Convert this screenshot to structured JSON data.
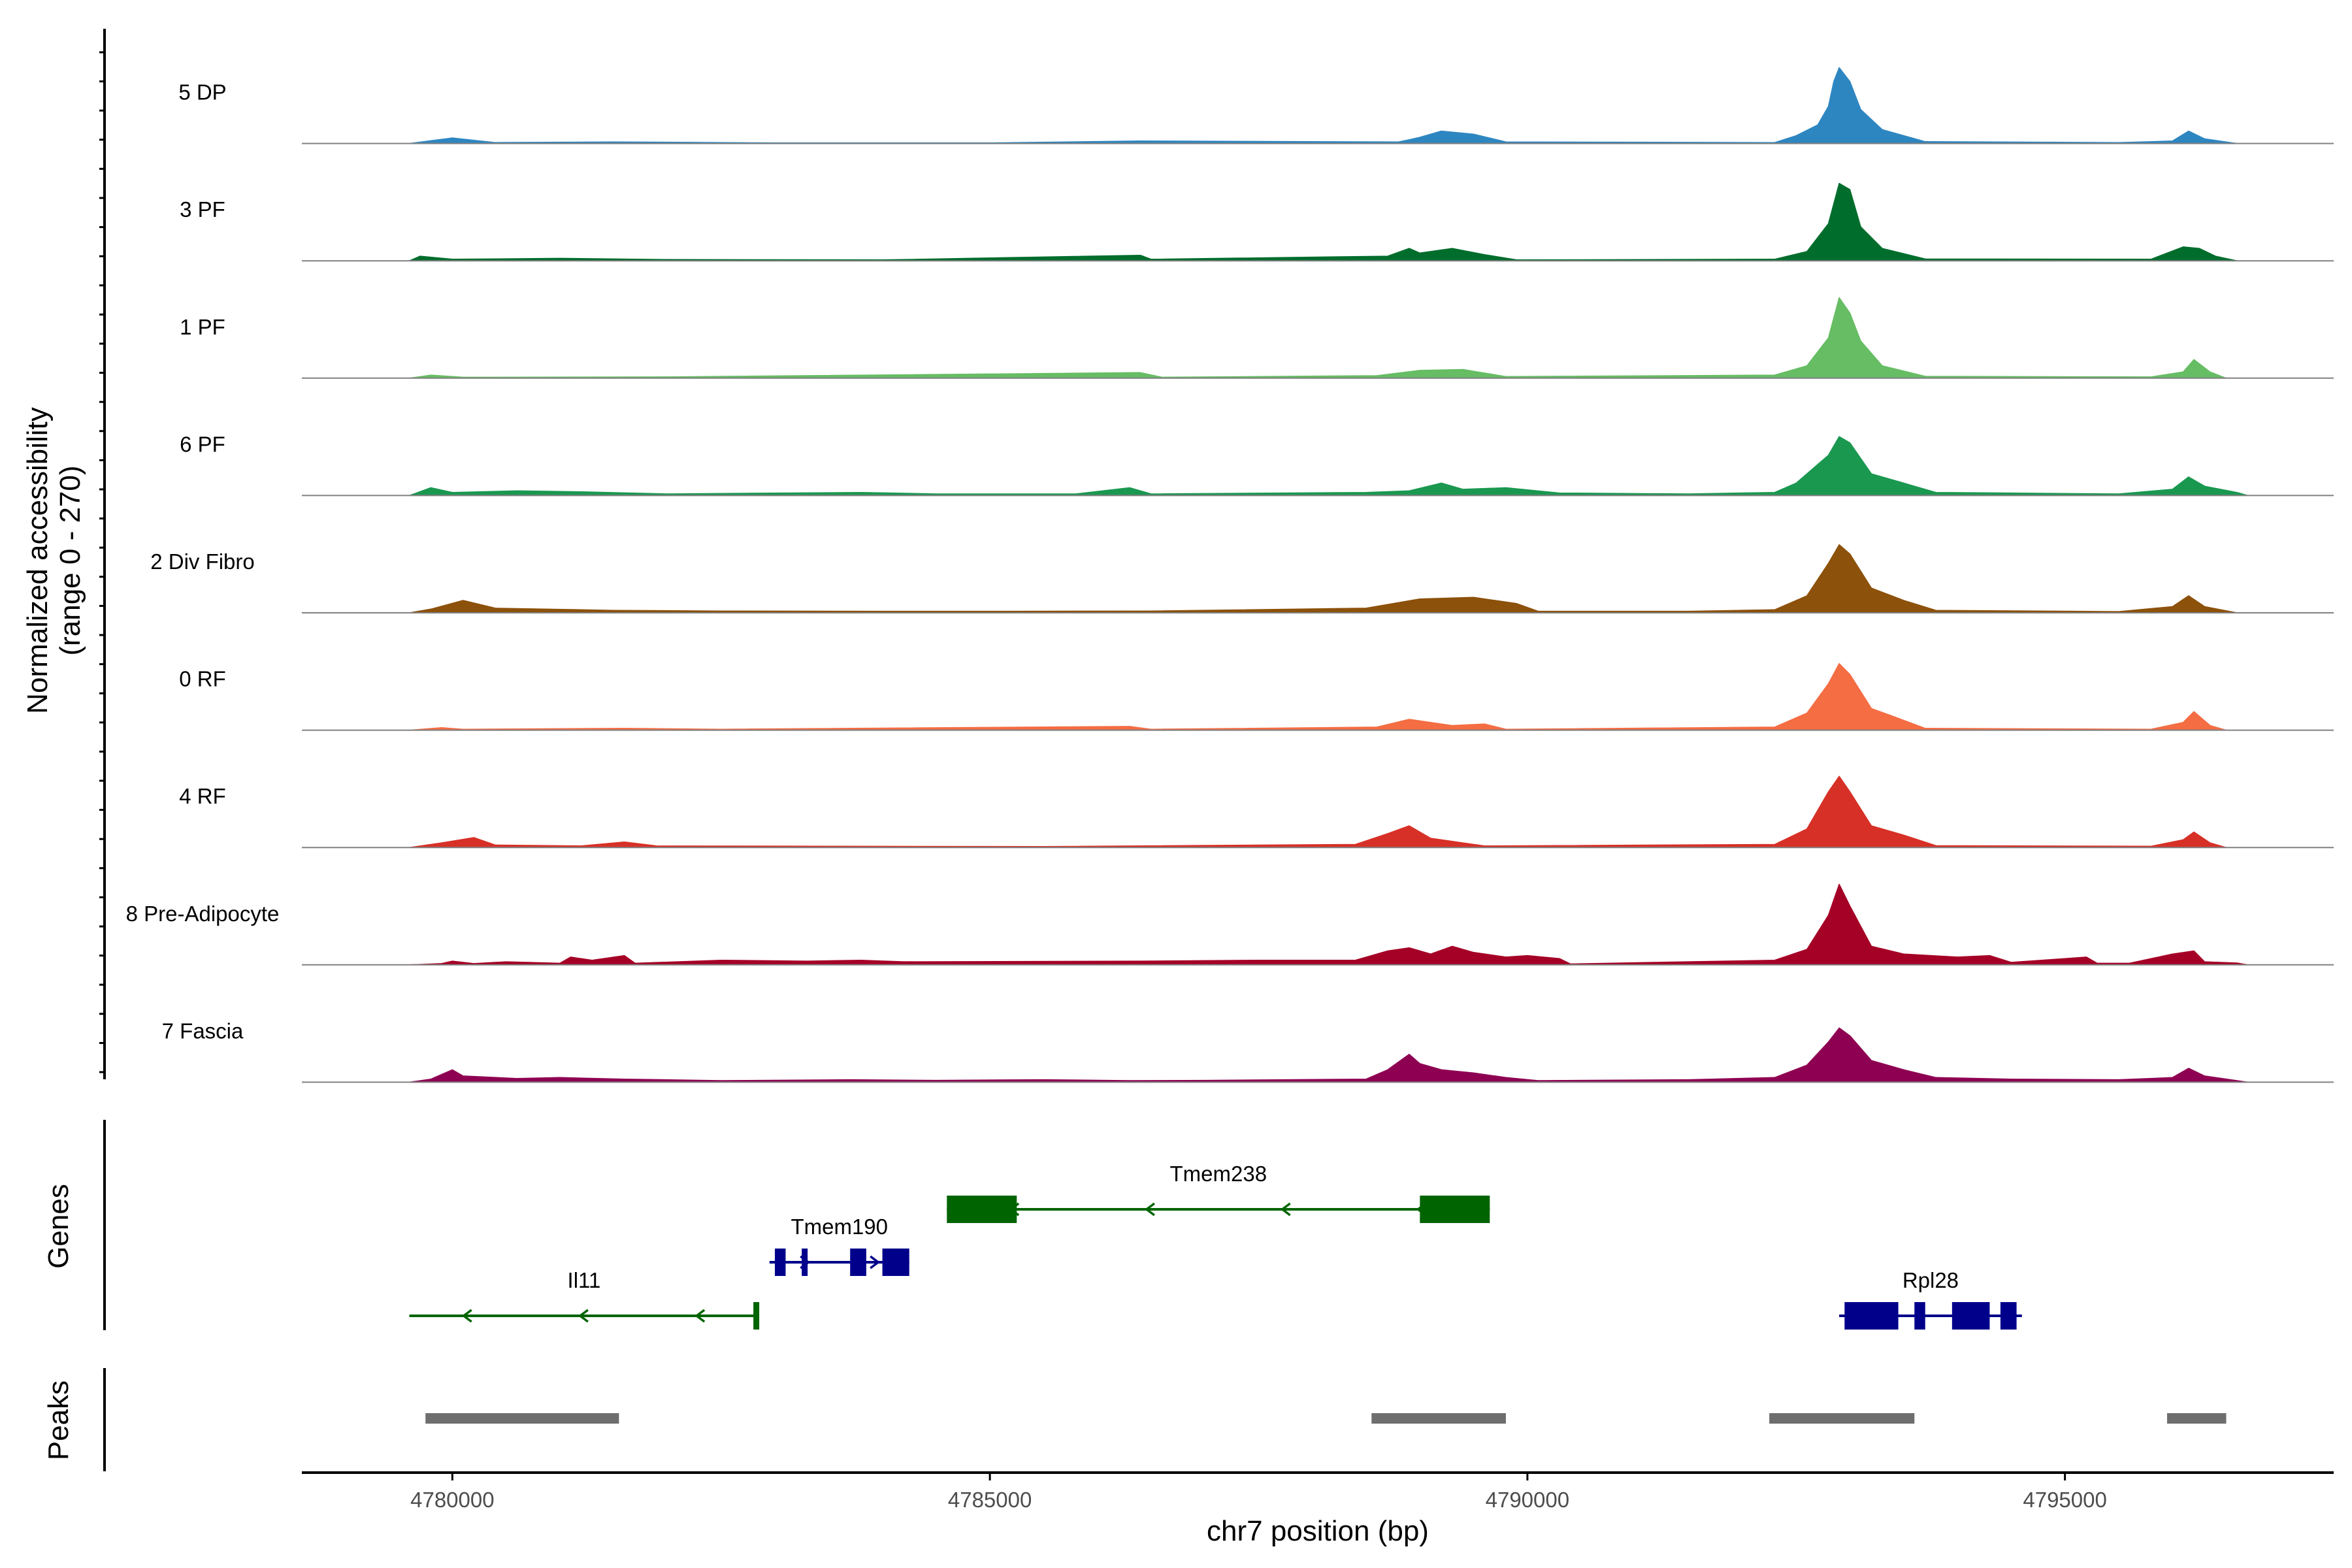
{
  "chart_data": {
    "type": "area",
    "title": "",
    "ylabel_line1": "Normalized accessibility",
    "ylabel_line2": "(range 0 - 270)",
    "ylim": [
      0,
      270
    ],
    "xlabel": "chr7 position (bp)",
    "xlim": [
      4778600,
      4797500
    ],
    "xticks": [
      4780000,
      4785000,
      4790000,
      4795000
    ],
    "xtick_labels": [
      "4780000",
      "4785000",
      "4790000",
      "4795000"
    ],
    "genes_panel_label": "Genes",
    "peaks_panel_label": "Peaks",
    "series": [
      {
        "name": "5 DP",
        "color": "#2e86c1",
        "data": [
          [
            4779600,
            0
          ],
          [
            4780000,
            18
          ],
          [
            4780400,
            3
          ],
          [
            4781500,
            5
          ],
          [
            4783000,
            2
          ],
          [
            4785000,
            2
          ],
          [
            4786400,
            8
          ],
          [
            4788800,
            5
          ],
          [
            4788900,
            12
          ],
          [
            4789000,
            20
          ],
          [
            4789200,
            40
          ],
          [
            4789500,
            30
          ],
          [
            4789800,
            5
          ],
          [
            4792300,
            3
          ],
          [
            4792500,
            25
          ],
          [
            4792700,
            60
          ],
          [
            4792800,
            120
          ],
          [
            4792850,
            200
          ],
          [
            4792900,
            245
          ],
          [
            4793000,
            200
          ],
          [
            4793100,
            110
          ],
          [
            4793300,
            45
          ],
          [
            4793700,
            6
          ],
          [
            4795500,
            3
          ],
          [
            4796000,
            8
          ],
          [
            4796150,
            40
          ],
          [
            4796300,
            15
          ],
          [
            4796600,
            0
          ]
        ]
      },
      {
        "name": "3 PF",
        "color": "#006d2c",
        "data": [
          [
            4779600,
            0
          ],
          [
            4779700,
            15
          ],
          [
            4780000,
            5
          ],
          [
            4781000,
            8
          ],
          [
            4782000,
            4
          ],
          [
            4784000,
            3
          ],
          [
            4786400,
            18
          ],
          [
            4786500,
            5
          ],
          [
            4788700,
            15
          ],
          [
            4788900,
            40
          ],
          [
            4789000,
            25
          ],
          [
            4789300,
            40
          ],
          [
            4789600,
            20
          ],
          [
            4789900,
            3
          ],
          [
            4792300,
            5
          ],
          [
            4792600,
            30
          ],
          [
            4792800,
            120
          ],
          [
            4792900,
            250
          ],
          [
            4793000,
            230
          ],
          [
            4793100,
            110
          ],
          [
            4793300,
            40
          ],
          [
            4793700,
            6
          ],
          [
            4795800,
            5
          ],
          [
            4796100,
            45
          ],
          [
            4796250,
            40
          ],
          [
            4796400,
            15
          ],
          [
            4796600,
            0
          ]
        ]
      },
      {
        "name": "1 PF",
        "color": "#66bd63",
        "data": [
          [
            4779600,
            0
          ],
          [
            4779800,
            10
          ],
          [
            4780100,
            3
          ],
          [
            4782000,
            4
          ],
          [
            4786400,
            18
          ],
          [
            4786600,
            3
          ],
          [
            4788600,
            8
          ],
          [
            4789000,
            25
          ],
          [
            4789400,
            28
          ],
          [
            4789800,
            5
          ],
          [
            4792300,
            10
          ],
          [
            4792600,
            40
          ],
          [
            4792800,
            130
          ],
          [
            4792900,
            260
          ],
          [
            4793000,
            210
          ],
          [
            4793100,
            120
          ],
          [
            4793300,
            40
          ],
          [
            4793700,
            6
          ],
          [
            4795800,
            4
          ],
          [
            4796100,
            20
          ],
          [
            4796200,
            60
          ],
          [
            4796350,
            20
          ],
          [
            4796500,
            0
          ]
        ]
      },
      {
        "name": "6 PF",
        "color": "#1a9850",
        "data": [
          [
            4779600,
            0
          ],
          [
            4779800,
            25
          ],
          [
            4780000,
            10
          ],
          [
            4780600,
            15
          ],
          [
            4781200,
            12
          ],
          [
            4782000,
            5
          ],
          [
            4783800,
            10
          ],
          [
            4784500,
            5
          ],
          [
            4785800,
            5
          ],
          [
            4786300,
            25
          ],
          [
            4786500,
            5
          ],
          [
            4788500,
            10
          ],
          [
            4788900,
            15
          ],
          [
            4789200,
            40
          ],
          [
            4789400,
            20
          ],
          [
            4789800,
            25
          ],
          [
            4790300,
            8
          ],
          [
            4791500,
            5
          ],
          [
            4792300,
            10
          ],
          [
            4792500,
            40
          ],
          [
            4792800,
            130
          ],
          [
            4792900,
            190
          ],
          [
            4793000,
            170
          ],
          [
            4793200,
            70
          ],
          [
            4793500,
            40
          ],
          [
            4793800,
            10
          ],
          [
            4795500,
            5
          ],
          [
            4796000,
            20
          ],
          [
            4796150,
            60
          ],
          [
            4796300,
            30
          ],
          [
            4796600,
            10
          ],
          [
            4796700,
            0
          ]
        ]
      },
      {
        "name": "2 Div Fibro",
        "color": "#8c510a",
        "data": [
          [
            4779600,
            0
          ],
          [
            4779800,
            12
          ],
          [
            4780100,
            40
          ],
          [
            4780400,
            15
          ],
          [
            4781500,
            8
          ],
          [
            4782500,
            6
          ],
          [
            4784000,
            5
          ],
          [
            4785200,
            5
          ],
          [
            4786500,
            6
          ],
          [
            4788500,
            15
          ],
          [
            4789000,
            45
          ],
          [
            4789500,
            50
          ],
          [
            4789900,
            30
          ],
          [
            4790100,
            5
          ],
          [
            4791500,
            5
          ],
          [
            4792300,
            10
          ],
          [
            4792600,
            55
          ],
          [
            4792800,
            160
          ],
          [
            4792900,
            220
          ],
          [
            4793000,
            190
          ],
          [
            4793200,
            80
          ],
          [
            4793500,
            40
          ],
          [
            4793800,
            8
          ],
          [
            4795500,
            4
          ],
          [
            4796000,
            20
          ],
          [
            4796150,
            55
          ],
          [
            4796300,
            20
          ],
          [
            4796600,
            0
          ]
        ]
      },
      {
        "name": "0 RF",
        "color": "#f46d43",
        "data": [
          [
            4779600,
            0
          ],
          [
            4779900,
            8
          ],
          [
            4780100,
            3
          ],
          [
            4781600,
            6
          ],
          [
            4782500,
            3
          ],
          [
            4786300,
            12
          ],
          [
            4786500,
            3
          ],
          [
            4788600,
            10
          ],
          [
            4788900,
            35
          ],
          [
            4789100,
            25
          ],
          [
            4789300,
            15
          ],
          [
            4789600,
            20
          ],
          [
            4789800,
            3
          ],
          [
            4792300,
            10
          ],
          [
            4792600,
            55
          ],
          [
            4792800,
            150
          ],
          [
            4792900,
            215
          ],
          [
            4793000,
            180
          ],
          [
            4793200,
            70
          ],
          [
            4793400,
            45
          ],
          [
            4793700,
            6
          ],
          [
            4795800,
            3
          ],
          [
            4796100,
            25
          ],
          [
            4796200,
            60
          ],
          [
            4796350,
            15
          ],
          [
            4796500,
            0
          ]
        ]
      },
      {
        "name": "4 RF",
        "color": "#d73027",
        "data": [
          [
            4779600,
            0
          ],
          [
            4779900,
            15
          ],
          [
            4780200,
            32
          ],
          [
            4780400,
            8
          ],
          [
            4781200,
            5
          ],
          [
            4781600,
            18
          ],
          [
            4781900,
            5
          ],
          [
            4783600,
            4
          ],
          [
            4785500,
            3
          ],
          [
            4788400,
            10
          ],
          [
            4788700,
            45
          ],
          [
            4788900,
            70
          ],
          [
            4789100,
            30
          ],
          [
            4789400,
            15
          ],
          [
            4789600,
            5
          ],
          [
            4792300,
            10
          ],
          [
            4792600,
            60
          ],
          [
            4792800,
            180
          ],
          [
            4792900,
            230
          ],
          [
            4793000,
            180
          ],
          [
            4793200,
            70
          ],
          [
            4793500,
            40
          ],
          [
            4793800,
            6
          ],
          [
            4795800,
            4
          ],
          [
            4796100,
            25
          ],
          [
            4796200,
            50
          ],
          [
            4796350,
            15
          ],
          [
            4796500,
            0
          ]
        ]
      },
      {
        "name": "8 Pre-Adipocyte",
        "color": "#a50026",
        "data": [
          [
            4779600,
            0
          ],
          [
            4779900,
            4
          ],
          [
            4780000,
            12
          ],
          [
            4780200,
            4
          ],
          [
            4780500,
            10
          ],
          [
            4781000,
            5
          ],
          [
            4781100,
            25
          ],
          [
            4781300,
            15
          ],
          [
            4781600,
            30
          ],
          [
            4781700,
            5
          ],
          [
            4782500,
            15
          ],
          [
            4783300,
            12
          ],
          [
            4783800,
            15
          ],
          [
            4784200,
            10
          ],
          [
            4786400,
            12
          ],
          [
            4787500,
            15
          ],
          [
            4788400,
            15
          ],
          [
            4788700,
            45
          ],
          [
            4788900,
            55
          ],
          [
            4789100,
            35
          ],
          [
            4789300,
            60
          ],
          [
            4789500,
            40
          ],
          [
            4789800,
            25
          ],
          [
            4790000,
            30
          ],
          [
            4790300,
            20
          ],
          [
            4790400,
            3
          ],
          [
            4792300,
            15
          ],
          [
            4792600,
            50
          ],
          [
            4792800,
            160
          ],
          [
            4792900,
            260
          ],
          [
            4793000,
            190
          ],
          [
            4793200,
            60
          ],
          [
            4793500,
            35
          ],
          [
            4794000,
            25
          ],
          [
            4794300,
            30
          ],
          [
            4794500,
            8
          ],
          [
            4795000,
            20
          ],
          [
            4795200,
            25
          ],
          [
            4795300,
            5
          ],
          [
            4795600,
            5
          ],
          [
            4796000,
            35
          ],
          [
            4796200,
            45
          ],
          [
            4796300,
            10
          ],
          [
            4796600,
            6
          ],
          [
            4796700,
            0
          ]
        ]
      },
      {
        "name": "7 Fascia",
        "color": "#8e0152",
        "data": [
          [
            4779600,
            0
          ],
          [
            4779800,
            10
          ],
          [
            4780000,
            40
          ],
          [
            4780100,
            20
          ],
          [
            4780600,
            12
          ],
          [
            4781000,
            15
          ],
          [
            4781600,
            10
          ],
          [
            4782500,
            5
          ],
          [
            4783700,
            8
          ],
          [
            4784500,
            6
          ],
          [
            4785500,
            8
          ],
          [
            4786300,
            5
          ],
          [
            4787000,
            6
          ],
          [
            4788500,
            10
          ],
          [
            4788700,
            40
          ],
          [
            4788900,
            90
          ],
          [
            4789000,
            60
          ],
          [
            4789200,
            40
          ],
          [
            4789500,
            30
          ],
          [
            4789800,
            15
          ],
          [
            4790100,
            5
          ],
          [
            4791500,
            8
          ],
          [
            4792300,
            15
          ],
          [
            4792600,
            55
          ],
          [
            4792800,
            130
          ],
          [
            4792900,
            175
          ],
          [
            4793000,
            150
          ],
          [
            4793200,
            70
          ],
          [
            4793500,
            40
          ],
          [
            4793800,
            15
          ],
          [
            4794500,
            10
          ],
          [
            4795500,
            8
          ],
          [
            4796000,
            15
          ],
          [
            4796150,
            45
          ],
          [
            4796300,
            20
          ],
          [
            4796600,
            5
          ],
          [
            4796700,
            0
          ]
        ]
      }
    ],
    "genes": [
      {
        "name": "Il11",
        "strand": "-",
        "color": "#006400",
        "start": 4779600,
        "end": 4782850,
        "row": 3,
        "exons": [
          [
            4782800,
            4782850
          ]
        ]
      },
      {
        "name": "Tmem190",
        "strand": "+",
        "color": "#00008b",
        "start": 4782950,
        "end": 4784250,
        "row": 2,
        "exons": [
          [
            4783000,
            4783100
          ],
          [
            4783250,
            4783280
          ],
          [
            4783700,
            4783850
          ],
          [
            4784000,
            4784050
          ],
          [
            4784050,
            4784250
          ]
        ]
      },
      {
        "name": "Tmem238",
        "strand": "-",
        "color": "#006400",
        "start": 4784600,
        "end": 4789650,
        "row": 1,
        "exons": [
          [
            4784600,
            4785250
          ],
          [
            4789000,
            4789650
          ]
        ]
      },
      {
        "name": "Rpl28",
        "strand": "+",
        "color": "#00008b",
        "start": 4792900,
        "end": 4794600,
        "row": 3,
        "exons": [
          [
            4792950,
            4793450
          ],
          [
            4793600,
            4793700
          ],
          [
            4793950,
            4794300
          ],
          [
            4794400,
            4794550
          ]
        ]
      }
    ],
    "peaks": [
      {
        "start": 4779750,
        "end": 4781550
      },
      {
        "start": 4788550,
        "end": 4789800
      },
      {
        "start": 4792250,
        "end": 4793600
      },
      {
        "start": 4795950,
        "end": 4796500
      }
    ]
  }
}
